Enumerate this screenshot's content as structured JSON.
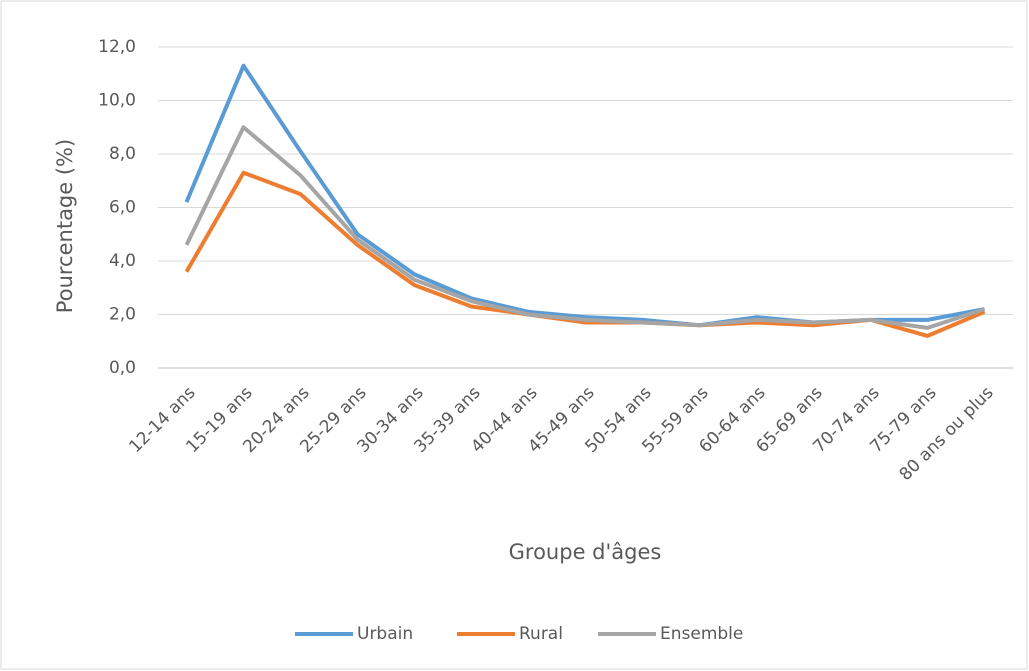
{
  "chart_data": {
    "type": "line",
    "x_label": "Groupe d'âges",
    "y_label": "Pourcentage (%)",
    "categories": [
      "12-14 ans",
      "15-19 ans",
      "20-24 ans",
      "25-29 ans",
      "30-34 ans",
      "35-39 ans",
      "40-44 ans",
      "45-49 ans",
      "50-54 ans",
      "55-59 ans",
      "60-64 ans",
      "65-69 ans",
      "70-74 ans",
      "75-79 ans",
      "80 ans ou plus"
    ],
    "series": [
      {
        "name": "Urbain",
        "color": "#5b9bd5",
        "values": [
          6.2,
          11.3,
          8.1,
          5.0,
          3.5,
          2.6,
          2.1,
          1.9,
          1.8,
          1.6,
          1.9,
          1.7,
          1.8,
          1.8,
          2.2
        ]
      },
      {
        "name": "Rural",
        "color": "#ed7d31",
        "values": [
          3.6,
          7.3,
          6.5,
          4.6,
          3.1,
          2.3,
          2.0,
          1.7,
          1.7,
          1.6,
          1.7,
          1.6,
          1.8,
          1.2,
          2.1
        ]
      },
      {
        "name": "Ensemble",
        "color": "#a5a5a5",
        "values": [
          4.6,
          9.0,
          7.2,
          4.8,
          3.3,
          2.5,
          2.0,
          1.8,
          1.7,
          1.6,
          1.8,
          1.7,
          1.8,
          1.5,
          2.2
        ]
      }
    ],
    "ylim": [
      0,
      12
    ],
    "yticks": [
      {
        "value": 0,
        "label": "0,0"
      },
      {
        "value": 2,
        "label": "2,0"
      },
      {
        "value": 4,
        "label": "4,0"
      },
      {
        "value": 6,
        "label": "6,0"
      },
      {
        "value": 8,
        "label": "8,0"
      },
      {
        "value": 10,
        "label": "10,0"
      },
      {
        "value": 12,
        "label": "12,0"
      }
    ],
    "grid": true,
    "legend": "bottom"
  }
}
